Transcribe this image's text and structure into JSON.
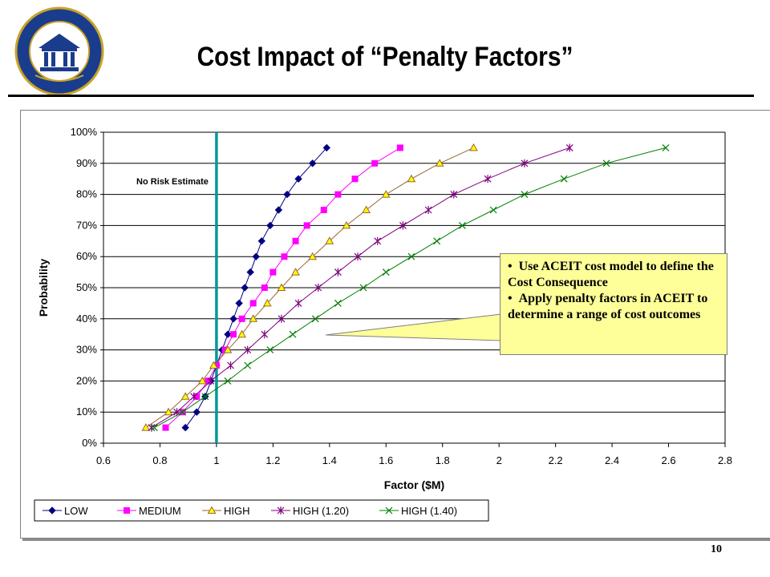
{
  "page": {
    "title": "Cost Impact of “Penalty Factors”",
    "page_number": "10",
    "seal_text": "DEFENSE ACQUISITION UNIVERSITY"
  },
  "callout": {
    "bullets": [
      "Use ACEIT cost model to define the Cost Consequence",
      "Apply penalty factors in ACEIT to determine a range of cost outcomes"
    ]
  },
  "chart_data": {
    "type": "line",
    "xlabel": "Factor ($M)",
    "ylabel": "Probability",
    "xlim": [
      0.6,
      2.8
    ],
    "ylim": [
      0,
      100
    ],
    "x_ticks": [
      "0.6",
      "0.8",
      "1",
      "1.2",
      "1.4",
      "1.6",
      "1.8",
      "2",
      "2.2",
      "2.4",
      "2.6",
      "2.8"
    ],
    "y_ticks": [
      "0%",
      "10%",
      "20%",
      "30%",
      "40%",
      "50%",
      "60%",
      "70%",
      "80%",
      "90%",
      "100%"
    ],
    "grid": "horizontal",
    "legend": "bottom",
    "reference_line": {
      "x": 1.0,
      "label": "No Risk Estimate",
      "color": "#009999"
    },
    "y": [
      5,
      10,
      15,
      20,
      25,
      30,
      35,
      40,
      45,
      50,
      55,
      60,
      65,
      70,
      75,
      80,
      85,
      90,
      95
    ],
    "series": [
      {
        "name": "LOW",
        "color": "#000080",
        "marker": "diamond",
        "x": [
          0.89,
          0.93,
          0.96,
          0.98,
          1.0,
          1.02,
          1.04,
          1.06,
          1.08,
          1.1,
          1.12,
          1.14,
          1.16,
          1.19,
          1.22,
          1.25,
          1.29,
          1.34,
          1.39
        ]
      },
      {
        "name": "MEDIUM",
        "color": "#ff00ff",
        "marker": "square",
        "x": [
          0.82,
          0.88,
          0.93,
          0.97,
          1.0,
          1.03,
          1.06,
          1.09,
          1.13,
          1.17,
          1.2,
          1.24,
          1.28,
          1.32,
          1.38,
          1.43,
          1.49,
          1.56,
          1.65
        ]
      },
      {
        "name": "HIGH",
        "color": "#996633",
        "marker": "triangle",
        "x": [
          0.75,
          0.83,
          0.89,
          0.95,
          0.99,
          1.04,
          1.09,
          1.13,
          1.18,
          1.23,
          1.28,
          1.34,
          1.4,
          1.46,
          1.53,
          1.6,
          1.69,
          1.79,
          1.91
        ]
      },
      {
        "name": "HIGH (1.20)",
        "color": "#800080",
        "marker": "star",
        "x": [
          0.77,
          0.86,
          0.92,
          0.98,
          1.05,
          1.11,
          1.17,
          1.23,
          1.29,
          1.36,
          1.43,
          1.5,
          1.57,
          1.66,
          1.75,
          1.84,
          1.96,
          2.09,
          2.25
        ]
      },
      {
        "name": "HIGH (1.40)",
        "color": "#008000",
        "marker": "x",
        "x": [
          0.78,
          0.88,
          0.96,
          1.04,
          1.11,
          1.19,
          1.27,
          1.35,
          1.43,
          1.52,
          1.6,
          1.69,
          1.78,
          1.87,
          1.98,
          2.09,
          2.23,
          2.38,
          2.59
        ]
      }
    ]
  }
}
